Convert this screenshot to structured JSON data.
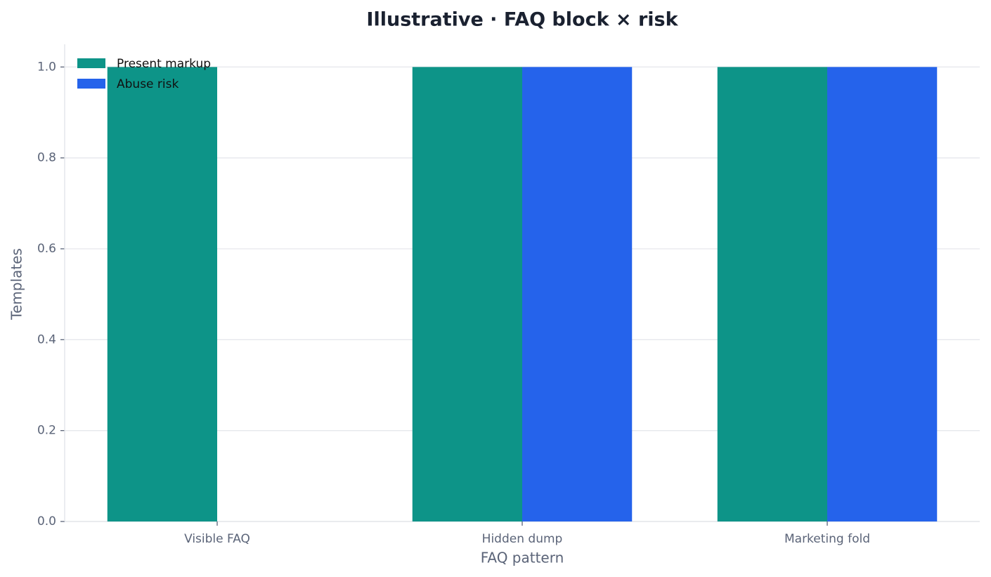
{
  "chart_data": {
    "type": "bar",
    "title": "Illustrative · FAQ block × risk",
    "x_label": "FAQ pattern",
    "y_label": "Templates",
    "categories": [
      "Visible FAQ",
      "Hidden dump",
      "Marketing fold"
    ],
    "series": [
      {
        "name": "Present markup",
        "color": "#0d9488",
        "values": [
          1,
          1,
          1
        ]
      },
      {
        "name": "Abuse risk",
        "color": "#2563eb",
        "values": [
          0,
          1,
          1
        ]
      }
    ],
    "ylim": [
      0,
      1.05
    ],
    "yticks": [
      {
        "value": 0,
        "label": "0.0"
      },
      0.2,
      0.4,
      0.6,
      0.8,
      {
        "value": 1,
        "label": "1.0"
      }
    ],
    "grid": true,
    "legend": "upper-left"
  }
}
